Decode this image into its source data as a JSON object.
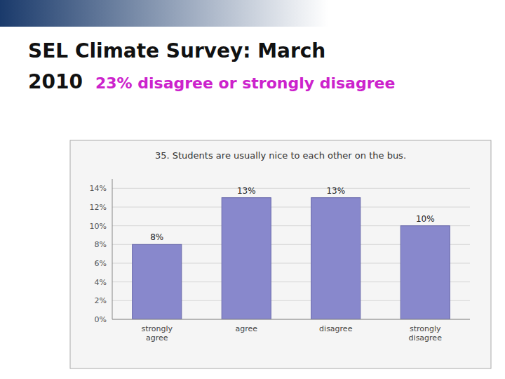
{
  "chart_data": {
    "type": "bar",
    "title": "SEL Climate Survey: March\n2010",
    "subtitle": "23% disagree or strongly disagree",
    "annotations": [
      "35. Students are usually nice to each other on the bus."
    ],
    "categories": [
      "strongly\nagree",
      "agree",
      "disagree",
      "strongly\ndisagree"
    ],
    "values": [
      8,
      13,
      13,
      10
    ],
    "value_labels": [
      "8%",
      "13%",
      "13%",
      "10%"
    ],
    "color": "#8888cc",
    "ylim": [
      0,
      15
    ],
    "yticks": [
      {
        "value": 0,
        "label": "0%"
      },
      {
        "value": 2,
        "label": "2%"
      },
      {
        "value": 4,
        "label": "4%"
      },
      {
        "value": 6,
        "label": "6%"
      },
      {
        "value": 8,
        "label": "8%"
      },
      {
        "value": 10,
        "label": "10%"
      },
      {
        "value": 12,
        "label": "12%"
      },
      {
        "value": 14,
        "label": "14%"
      }
    ],
    "grid": true
  }
}
